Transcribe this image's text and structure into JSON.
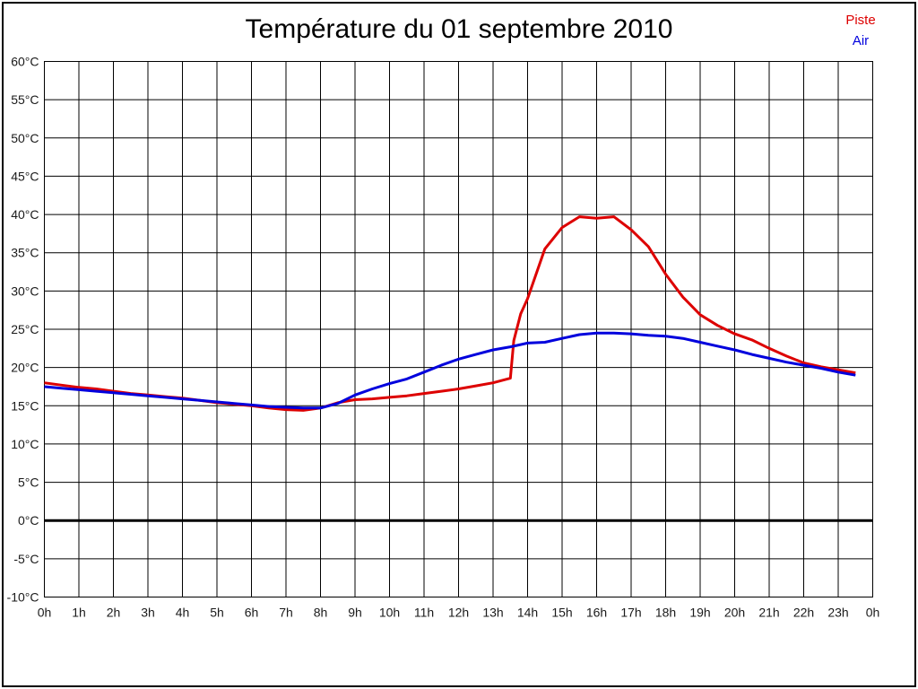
{
  "title": "Température du 01 septembre 2010",
  "legend": {
    "position": "top-right",
    "entries": [
      {
        "label": "Piste",
        "color": "#dd0000"
      },
      {
        "label": "Air",
        "color": "#0000dd"
      }
    ]
  },
  "chart_data": {
    "type": "line",
    "title": "Température du 01 septembre 2010",
    "xlabel": "",
    "ylabel": "",
    "x_unit": "h",
    "y_unit": "°C",
    "xlim": [
      0,
      24
    ],
    "ylim": [
      -10,
      60
    ],
    "x_tick_step_hours": 1,
    "y_tick_step_degrees": 5,
    "grid": true,
    "zero_line_bold": true,
    "x_tick_labels": [
      "0h",
      "1h",
      "2h",
      "3h",
      "4h",
      "5h",
      "6h",
      "7h",
      "8h",
      "9h",
      "10h",
      "11h",
      "12h",
      "13h",
      "14h",
      "15h",
      "16h",
      "17h",
      "18h",
      "19h",
      "20h",
      "21h",
      "22h",
      "23h",
      "0h"
    ],
    "y_tick_labels": [
      "60°C",
      "55°C",
      "50°C",
      "45°C",
      "40°C",
      "35°C",
      "30°C",
      "25°C",
      "20°C",
      "15°C",
      "10°C",
      "5°C",
      "0°C",
      "-5°C",
      "-10°C"
    ],
    "series": [
      {
        "name": "Piste",
        "color": "#dd0000",
        "points": [
          [
            0,
            18.0
          ],
          [
            0.5,
            17.7
          ],
          [
            1,
            17.4
          ],
          [
            1.5,
            17.2
          ],
          [
            2,
            16.9
          ],
          [
            2.5,
            16.6
          ],
          [
            3,
            16.4
          ],
          [
            3.5,
            16.2
          ],
          [
            4,
            16.0
          ],
          [
            4.5,
            15.7
          ],
          [
            5,
            15.4
          ],
          [
            5.5,
            15.2
          ],
          [
            6,
            15.0
          ],
          [
            6.5,
            14.7
          ],
          [
            7,
            14.5
          ],
          [
            7.5,
            14.4
          ],
          [
            8,
            14.7
          ],
          [
            8.5,
            15.4
          ],
          [
            9,
            15.8
          ],
          [
            9.5,
            15.9
          ],
          [
            10,
            16.1
          ],
          [
            10.5,
            16.3
          ],
          [
            11,
            16.6
          ],
          [
            11.5,
            16.9
          ],
          [
            12,
            17.2
          ],
          [
            12.5,
            17.6
          ],
          [
            13,
            18.0
          ],
          [
            13.5,
            18.6
          ],
          [
            13.6,
            23.5
          ],
          [
            13.8,
            27.0
          ],
          [
            14,
            29.0
          ],
          [
            14.5,
            35.5
          ],
          [
            15,
            38.3
          ],
          [
            15.5,
            39.7
          ],
          [
            16,
            39.5
          ],
          [
            16.5,
            39.7
          ],
          [
            17,
            38.0
          ],
          [
            17.5,
            35.8
          ],
          [
            18,
            32.2
          ],
          [
            18.5,
            29.2
          ],
          [
            19,
            26.9
          ],
          [
            19.5,
            25.5
          ],
          [
            20,
            24.4
          ],
          [
            20.5,
            23.6
          ],
          [
            21,
            22.5
          ],
          [
            21.5,
            21.5
          ],
          [
            22,
            20.6
          ],
          [
            22.5,
            20.1
          ],
          [
            23,
            19.7
          ],
          [
            23.5,
            19.3
          ]
        ]
      },
      {
        "name": "Air",
        "color": "#0000dd",
        "points": [
          [
            0,
            17.5
          ],
          [
            0.5,
            17.3
          ],
          [
            1,
            17.1
          ],
          [
            1.5,
            16.9
          ],
          [
            2,
            16.7
          ],
          [
            2.5,
            16.5
          ],
          [
            3,
            16.3
          ],
          [
            3.5,
            16.1
          ],
          [
            4,
            15.9
          ],
          [
            4.5,
            15.7
          ],
          [
            5,
            15.5
          ],
          [
            5.5,
            15.3
          ],
          [
            6,
            15.1
          ],
          [
            6.5,
            14.9
          ],
          [
            7,
            14.8
          ],
          [
            7.5,
            14.7
          ],
          [
            8,
            14.7
          ],
          [
            8.5,
            15.3
          ],
          [
            9,
            16.4
          ],
          [
            9.5,
            17.2
          ],
          [
            10,
            17.9
          ],
          [
            10.5,
            18.5
          ],
          [
            11,
            19.4
          ],
          [
            11.5,
            20.3
          ],
          [
            12,
            21.1
          ],
          [
            12.5,
            21.7
          ],
          [
            13,
            22.3
          ],
          [
            13.5,
            22.7
          ],
          [
            14,
            23.2
          ],
          [
            14.5,
            23.3
          ],
          [
            15,
            23.8
          ],
          [
            15.5,
            24.3
          ],
          [
            16,
            24.5
          ],
          [
            16.5,
            24.5
          ],
          [
            17,
            24.4
          ],
          [
            17.5,
            24.2
          ],
          [
            18,
            24.1
          ],
          [
            18.5,
            23.8
          ],
          [
            19,
            23.3
          ],
          [
            19.5,
            22.8
          ],
          [
            20,
            22.3
          ],
          [
            20.5,
            21.7
          ],
          [
            21,
            21.2
          ],
          [
            21.5,
            20.7
          ],
          [
            22,
            20.3
          ],
          [
            22.5,
            19.9
          ],
          [
            23,
            19.4
          ],
          [
            23.5,
            19.0
          ]
        ]
      }
    ]
  },
  "style": {
    "grid_color": "#000000",
    "axis_label_color": "#1a1a1a",
    "background": "#ffffff"
  }
}
